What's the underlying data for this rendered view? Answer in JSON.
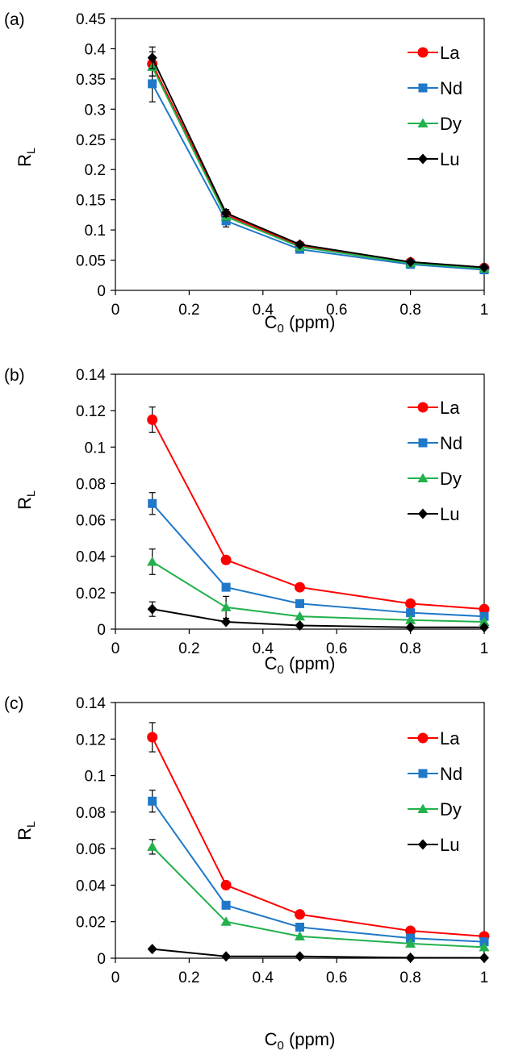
{
  "chart_data": [
    {
      "panel_label": "(a)",
      "type": "line",
      "x": [
        0.1,
        0.3,
        0.5,
        0.8,
        1.0
      ],
      "xlim": [
        0,
        1.0
      ],
      "xticks": [
        "0",
        "0.2",
        "0.4",
        "0.6",
        "0.8",
        "1"
      ],
      "ylim": [
        0,
        0.45
      ],
      "yticks": [
        "0",
        "0.05",
        "0.1",
        "0.15",
        "0.2",
        "0.25",
        "0.3",
        "0.35",
        "0.4",
        "0.45"
      ],
      "xlabel_main": "C",
      "xlabel_sub": "0",
      "xlabel_unit": " (ppm)",
      "ylabel_main": "R",
      "ylabel_sub": "L",
      "legend_position": "right",
      "series": [
        {
          "name": "La",
          "color": "#ff0000",
          "marker": "circle",
          "values": [
            0.375,
            0.125,
            0.074,
            0.046,
            0.037
          ],
          "errors": [
            0.02,
            0.006,
            0.003,
            0.002,
            0.002
          ]
        },
        {
          "name": "Nd",
          "color": "#1f78c8",
          "marker": "square",
          "values": [
            0.342,
            0.115,
            0.068,
            0.043,
            0.034
          ],
          "errors": [
            0.03,
            0.01,
            0.003,
            0.002,
            0.002
          ]
        },
        {
          "name": "Dy",
          "color": "#22b14c",
          "marker": "triangle",
          "values": [
            0.37,
            0.122,
            0.072,
            0.045,
            0.036
          ],
          "errors": [
            0.015,
            0.006,
            0.003,
            0.002,
            0.002
          ]
        },
        {
          "name": "Lu",
          "color": "#000000",
          "marker": "diamond",
          "values": [
            0.385,
            0.128,
            0.076,
            0.047,
            0.038
          ],
          "errors": [
            0.018,
            0.006,
            0.003,
            0.002,
            0.002
          ]
        }
      ]
    },
    {
      "panel_label": "(b)",
      "type": "line",
      "x": [
        0.1,
        0.3,
        0.5,
        0.8,
        1.0
      ],
      "xlim": [
        0,
        1.0
      ],
      "xticks": [
        "0",
        "0.2",
        "0.4",
        "0.6",
        "0.8",
        "1"
      ],
      "ylim": [
        0,
        0.14
      ],
      "yticks": [
        "0",
        "0.02",
        "0.04",
        "0.06",
        "0.08",
        "0.1",
        "0.12",
        "0.14"
      ],
      "xlabel_main": "C",
      "xlabel_sub": "0",
      "xlabel_unit": " (ppm)",
      "ylabel_main": "R",
      "ylabel_sub": "L",
      "legend_position": "right",
      "series": [
        {
          "name": "La",
          "color": "#ff0000",
          "marker": "circle",
          "values": [
            0.115,
            0.038,
            0.023,
            0.014,
            0.011
          ],
          "errors": [
            0.007,
            0,
            0,
            0,
            0
          ]
        },
        {
          "name": "Nd",
          "color": "#1f78c8",
          "marker": "square",
          "values": [
            0.069,
            0.023,
            0.014,
            0.009,
            0.007
          ],
          "errors": [
            0.006,
            0,
            0,
            0,
            0
          ]
        },
        {
          "name": "Dy",
          "color": "#22b14c",
          "marker": "triangle",
          "values": [
            0.037,
            0.012,
            0.007,
            0.005,
            0.004
          ],
          "errors": [
            0.007,
            0.006,
            0,
            0,
            0
          ]
        },
        {
          "name": "Lu",
          "color": "#000000",
          "marker": "diamond",
          "values": [
            0.011,
            0.004,
            0.002,
            0.001,
            0.001
          ],
          "errors": [
            0.004,
            0,
            0,
            0,
            0
          ]
        }
      ]
    },
    {
      "panel_label": "(c)",
      "type": "line",
      "x": [
        0.1,
        0.3,
        0.5,
        0.8,
        1.0
      ],
      "xlim": [
        0,
        1.0
      ],
      "xticks": [
        "0",
        "0.2",
        "0.4",
        "0.6",
        "0.8",
        "1"
      ],
      "ylim": [
        0,
        0.14
      ],
      "yticks": [
        "0",
        "0.02",
        "0.04",
        "0.06",
        "0.08",
        "0.1",
        "0.12",
        "0.14"
      ],
      "xlabel_main": "C",
      "xlabel_sub": "0",
      "xlabel_unit": " (ppm)",
      "ylabel_main": "R",
      "ylabel_sub": "L",
      "legend_position": "right",
      "series": [
        {
          "name": "La",
          "color": "#ff0000",
          "marker": "circle",
          "values": [
            0.121,
            0.04,
            0.024,
            0.015,
            0.012
          ],
          "errors": [
            0.008,
            0,
            0,
            0,
            0
          ]
        },
        {
          "name": "Nd",
          "color": "#1f78c8",
          "marker": "square",
          "values": [
            0.086,
            0.029,
            0.017,
            0.011,
            0.009
          ],
          "errors": [
            0.006,
            0,
            0,
            0,
            0
          ]
        },
        {
          "name": "Dy",
          "color": "#22b14c",
          "marker": "triangle",
          "values": [
            0.061,
            0.02,
            0.012,
            0.008,
            0.006
          ],
          "errors": [
            0.004,
            0,
            0,
            0,
            0
          ]
        },
        {
          "name": "Lu",
          "color": "#000000",
          "marker": "diamond",
          "values": [
            0.005,
            0.001,
            0.001,
            0.0003,
            0.0002
          ],
          "errors": [
            0,
            0,
            0,
            0,
            0
          ]
        }
      ]
    }
  ]
}
